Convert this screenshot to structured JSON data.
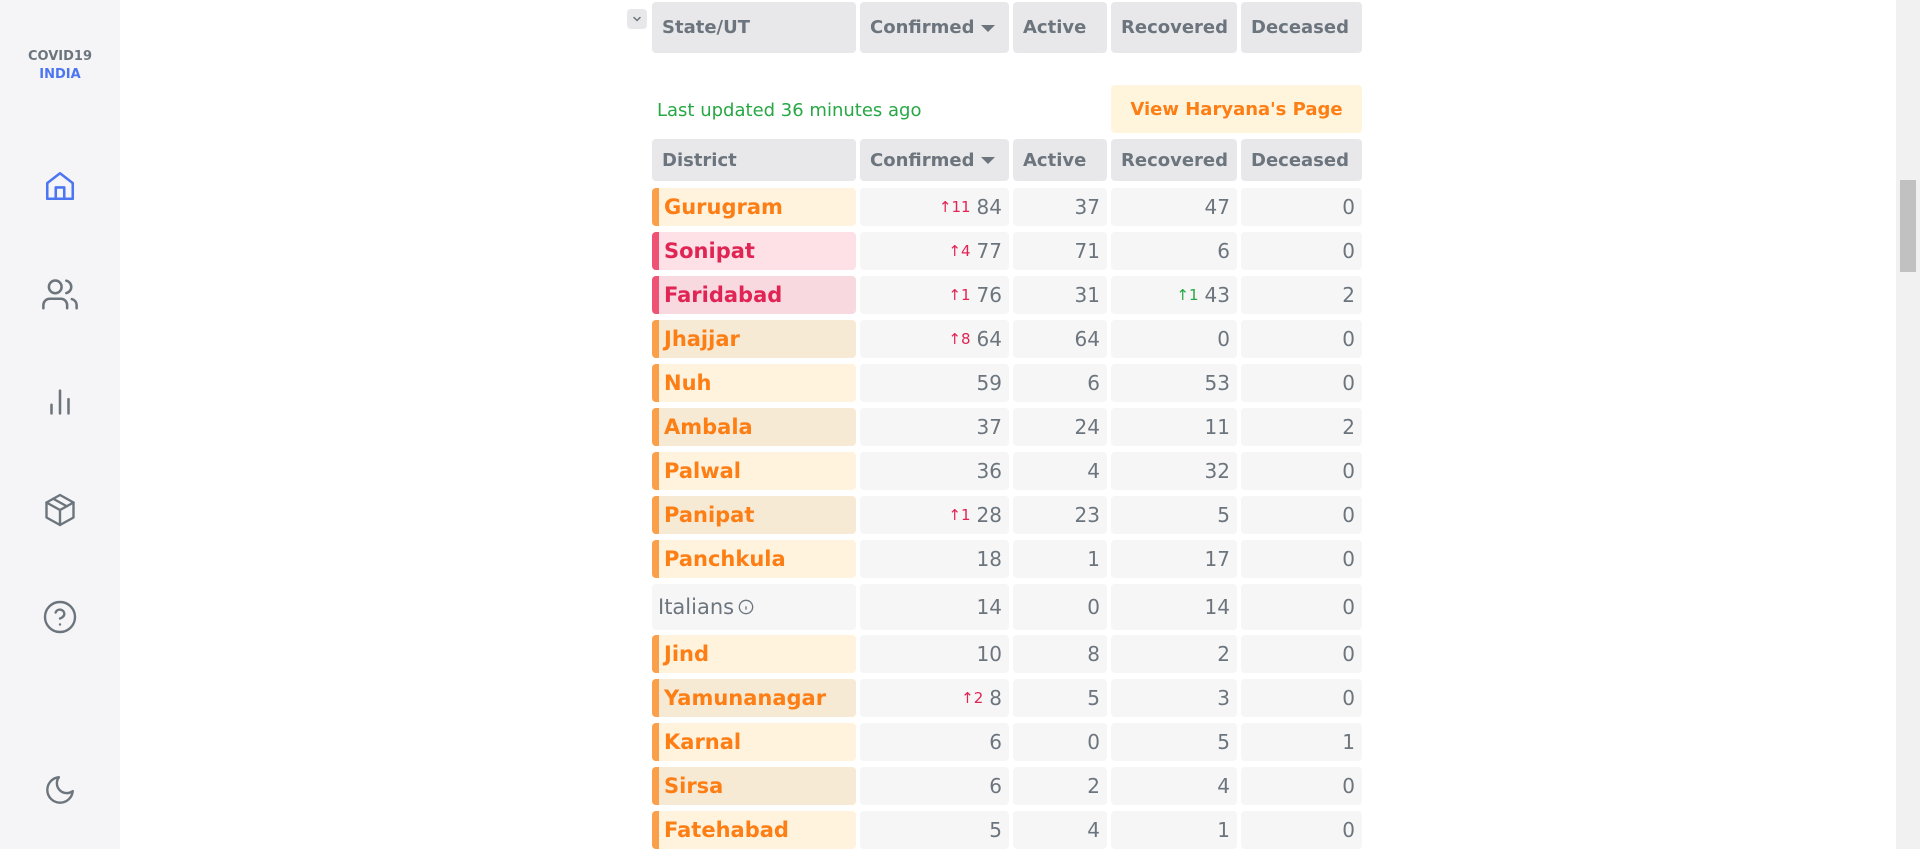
{
  "brand": {
    "line1": "COVID19",
    "line2": "INDIA"
  },
  "nav": [
    "home-icon",
    "users-icon",
    "bar-chart-icon",
    "package-icon",
    "help-circle-icon",
    "moon-icon"
  ],
  "state_table": {
    "headers": [
      "State/UT",
      "Confirmed",
      "Active",
      "Recovered",
      "Deceased"
    ]
  },
  "last_updated": "Last updated 36 minutes ago",
  "view_state_button": "View Haryana's Page",
  "district_table": {
    "headers": [
      "District",
      "Confirmed",
      "Active",
      "Recovered",
      "Deceased"
    ],
    "rows": [
      {
        "name": "Gurugram",
        "tone": "orange",
        "confirmed": "84",
        "confirmed_delta": "11",
        "active": "37",
        "recovered": "47",
        "recovered_delta": "",
        "deceased": "0"
      },
      {
        "name": "Sonipat",
        "tone": "red",
        "confirmed": "77",
        "confirmed_delta": "4",
        "active": "71",
        "recovered": "6",
        "recovered_delta": "",
        "deceased": "0"
      },
      {
        "name": "Faridabad",
        "tone": "red",
        "confirmed": "76",
        "confirmed_delta": "1",
        "active": "31",
        "recovered": "43",
        "recovered_delta": "1",
        "deceased": "2"
      },
      {
        "name": "Jhajjar",
        "tone": "orange",
        "confirmed": "64",
        "confirmed_delta": "8",
        "active": "64",
        "recovered": "0",
        "recovered_delta": "",
        "deceased": "0"
      },
      {
        "name": "Nuh",
        "tone": "orange",
        "confirmed": "59",
        "confirmed_delta": "",
        "active": "6",
        "recovered": "53",
        "recovered_delta": "",
        "deceased": "0"
      },
      {
        "name": "Ambala",
        "tone": "orange",
        "confirmed": "37",
        "confirmed_delta": "",
        "active": "24",
        "recovered": "11",
        "recovered_delta": "",
        "deceased": "2"
      },
      {
        "name": "Palwal",
        "tone": "orange",
        "confirmed": "36",
        "confirmed_delta": "",
        "active": "4",
        "recovered": "32",
        "recovered_delta": "",
        "deceased": "0"
      },
      {
        "name": "Panipat",
        "tone": "orange",
        "confirmed": "28",
        "confirmed_delta": "1",
        "active": "23",
        "recovered": "5",
        "recovered_delta": "",
        "deceased": "0"
      },
      {
        "name": "Panchkula",
        "tone": "orange",
        "confirmed": "18",
        "confirmed_delta": "",
        "active": "1",
        "recovered": "17",
        "recovered_delta": "",
        "deceased": "0"
      },
      {
        "name": "Italians",
        "tone": "plain",
        "info": true,
        "confirmed": "14",
        "confirmed_delta": "",
        "active": "0",
        "recovered": "14",
        "recovered_delta": "",
        "deceased": "0"
      },
      {
        "name": "Jind",
        "tone": "orange",
        "confirmed": "10",
        "confirmed_delta": "",
        "active": "8",
        "recovered": "2",
        "recovered_delta": "",
        "deceased": "0"
      },
      {
        "name": "Yamunanagar",
        "tone": "orange",
        "confirmed": "8",
        "confirmed_delta": "2",
        "active": "5",
        "recovered": "3",
        "recovered_delta": "",
        "deceased": "0"
      },
      {
        "name": "Karnal",
        "tone": "orange",
        "confirmed": "6",
        "confirmed_delta": "",
        "active": "0",
        "recovered": "5",
        "recovered_delta": "",
        "deceased": "1"
      },
      {
        "name": "Sirsa",
        "tone": "orange",
        "confirmed": "6",
        "confirmed_delta": "",
        "active": "2",
        "recovered": "4",
        "recovered_delta": "",
        "deceased": "0"
      },
      {
        "name": "Fatehabad",
        "tone": "orange",
        "confirmed": "5",
        "confirmed_delta": "",
        "active": "4",
        "recovered": "1",
        "recovered_delta": "",
        "deceased": "0"
      }
    ]
  },
  "colors": {
    "accent_blue": "#4c75f2",
    "orange_text": "#fd7e14",
    "red_text": "#e02454",
    "green_text": "#28a745"
  }
}
